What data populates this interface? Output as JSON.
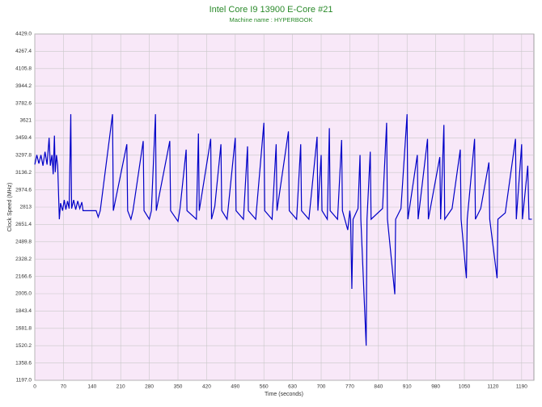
{
  "chart_data": {
    "type": "line",
    "title": "Intel Core I9 13900 E-Core #21",
    "subtitle": "Machine name : HYPERBOOK",
    "x_label": "Time (seconds)",
    "y_label": "Clock Speed (MHz)",
    "color": "#0000c8",
    "grid": true,
    "xlim": [
      0,
      1220
    ],
    "xticks": [
      0,
      70,
      140,
      210,
      280,
      350,
      420,
      490,
      560,
      630,
      700,
      770,
      840,
      910,
      980,
      1050,
      1120,
      1190
    ],
    "ylim": [
      1197,
      4429
    ],
    "yticks": [
      {
        "value": 1197,
        "label": "1197.0"
      },
      1358.6,
      1520.2,
      1681.8,
      1843.4,
      {
        "value": 2005,
        "label": "2005.0"
      },
      2166.6,
      2328.2,
      2489.8,
      2651.4,
      2813,
      2974.6,
      3136.2,
      3297.8,
      3459.4,
      3621,
      3782.6,
      3944.2,
      4105.8,
      4267.4,
      {
        "value": 4429,
        "label": "4429.0"
      }
    ],
    "x": [
      0,
      5,
      10,
      15,
      20,
      25,
      30,
      35,
      38,
      42,
      45,
      48,
      50,
      53,
      56,
      60,
      63,
      68,
      72,
      76,
      80,
      84,
      88,
      90,
      95,
      100,
      105,
      110,
      115,
      118,
      150,
      155,
      160,
      190,
      192,
      225,
      227,
      235,
      240,
      265,
      267,
      280,
      285,
      295,
      297,
      330,
      332,
      350,
      355,
      370,
      372,
      395,
      400,
      402,
      430,
      432,
      440,
      455,
      457,
      470,
      490,
      492,
      510,
      520,
      522,
      540,
      560,
      562,
      580,
      590,
      592,
      620,
      622,
      640,
      650,
      652,
      670,
      690,
      692,
      700,
      702,
      715,
      720,
      722,
      740,
      750,
      752,
      765,
      770,
      772,
      775,
      778,
      790,
      795,
      797,
      810,
      812,
      820,
      822,
      850,
      860,
      862,
      880,
      882,
      895,
      910,
      912,
      935,
      937,
      960,
      962,
      990,
      992,
      1000,
      1002,
      1020,
      1040,
      1042,
      1055,
      1057,
      1075,
      1077,
      1090,
      1110,
      1112,
      1130,
      1132,
      1150,
      1175,
      1177,
      1190,
      1192,
      1205,
      1208,
      1215
    ],
    "values": [
      3210,
      3300,
      3220,
      3300,
      3200,
      3330,
      3210,
      3460,
      3200,
      3300,
      3120,
      3480,
      3140,
      3300,
      3200,
      2700,
      2850,
      2780,
      2880,
      2790,
      2870,
      2800,
      3680,
      2800,
      2880,
      2790,
      2870,
      2800,
      2860,
      2780,
      2780,
      2720,
      2780,
      3680,
      2780,
      3400,
      2780,
      2700,
      2780,
      3430,
      2780,
      2700,
      2780,
      3680,
      2780,
      3430,
      2780,
      2680,
      2800,
      3350,
      2780,
      2700,
      3500,
      2780,
      3450,
      2700,
      2820,
      3400,
      2780,
      2700,
      3460,
      2780,
      2700,
      3380,
      2780,
      2700,
      3600,
      2780,
      2700,
      3400,
      2780,
      3520,
      2780,
      2700,
      3400,
      2780,
      2700,
      3470,
      2780,
      3300,
      2780,
      2700,
      3550,
      2780,
      2700,
      3440,
      2780,
      2600,
      2780,
      2700,
      2050,
      2700,
      2800,
      3300,
      2700,
      1520,
      2700,
      3330,
      2700,
      2800,
      3600,
      2700,
      2000,
      2700,
      2800,
      3680,
      2700,
      3300,
      2700,
      3450,
      2700,
      3280,
      2700,
      3580,
      2700,
      2800,
      3350,
      2700,
      2150,
      2700,
      3450,
      2700,
      2800,
      3230,
      2700,
      2150,
      2700,
      2760,
      3450,
      2700,
      3400,
      2700,
      3200,
      2700,
      2700
    ]
  }
}
